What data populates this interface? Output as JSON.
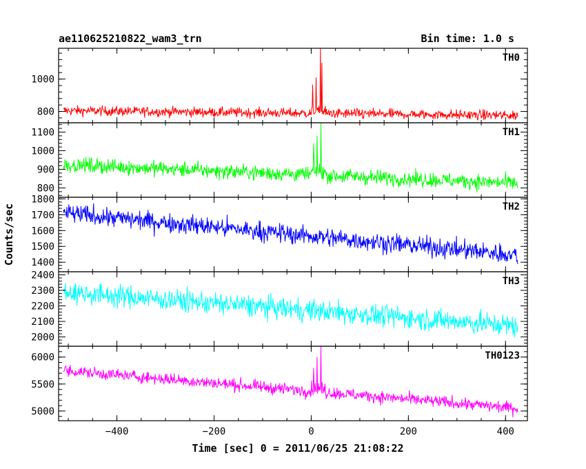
{
  "chart_data": {
    "type": "line",
    "title": "ae110625210822_wam3_trn",
    "subtitle": "Bin time: 1.0 s",
    "xlabel": "Time [sec] 0 = 2011/06/25 21:08:22",
    "ylabel": "Counts/sec",
    "xlim": [
      -520,
      445
    ],
    "x_ticks": [
      -400,
      -200,
      0,
      200,
      400
    ],
    "x_tick_labels": [
      "−400",
      "−200",
      "0",
      "200",
      "400"
    ],
    "x_range": [
      -510,
      425
    ],
    "bin_time": 1.0,
    "series": [
      {
        "name": "TH0",
        "color": "#ff0000",
        "ylim": [
          730,
          1190
        ],
        "y_ticks": [
          800,
          1000
        ],
        "y_tick_labels": [
          "800",
          "1000"
        ],
        "start": 805,
        "end": 775,
        "noise": 30,
        "bursts": [
          [
            3,
            965
          ],
          [
            10,
            1010
          ],
          [
            19,
            1190
          ],
          [
            22,
            1100
          ]
        ]
      },
      {
        "name": "TH1",
        "color": "#00ff00",
        "ylim": [
          750,
          1150
        ],
        "y_ticks": [
          800,
          900,
          1000,
          1100
        ],
        "y_tick_labels": [
          "800",
          "900",
          "1000",
          "1100"
        ],
        "start": 925,
        "end": 825,
        "noise": 40,
        "bursts": [
          [
            5,
            1040
          ],
          [
            12,
            1080
          ],
          [
            20,
            1150
          ]
        ]
      },
      {
        "name": "TH2",
        "color": "#0000ff",
        "ylim": [
          1340,
          1810
        ],
        "y_ticks": [
          1400,
          1500,
          1600,
          1700,
          1800
        ],
        "y_tick_labels": [
          "1400",
          "1500",
          "1600",
          "1700",
          "1800"
        ],
        "start": 1710,
        "end": 1445,
        "noise": 60,
        "bursts": []
      },
      {
        "name": "TH3",
        "color": "#00ffff",
        "ylim": [
          1940,
          2420
        ],
        "y_ticks": [
          2000,
          2100,
          2200,
          2300,
          2400
        ],
        "y_tick_labels": [
          "2000",
          "2100",
          "2200",
          "2300",
          "2400"
        ],
        "start": 2290,
        "end": 2070,
        "noise": 70,
        "bursts": []
      },
      {
        "name": "TH0123",
        "color": "#ff00ff",
        "ylim": [
          4820,
          6200
        ],
        "y_ticks": [
          5000,
          5500,
          6000
        ],
        "y_tick_labels": [
          "5000",
          "5500",
          "6000"
        ],
        "start": 5750,
        "end": 5050,
        "noise": 110,
        "bursts": [
          [
            5,
            5800
          ],
          [
            12,
            6000
          ],
          [
            20,
            6200
          ]
        ]
      }
    ]
  }
}
